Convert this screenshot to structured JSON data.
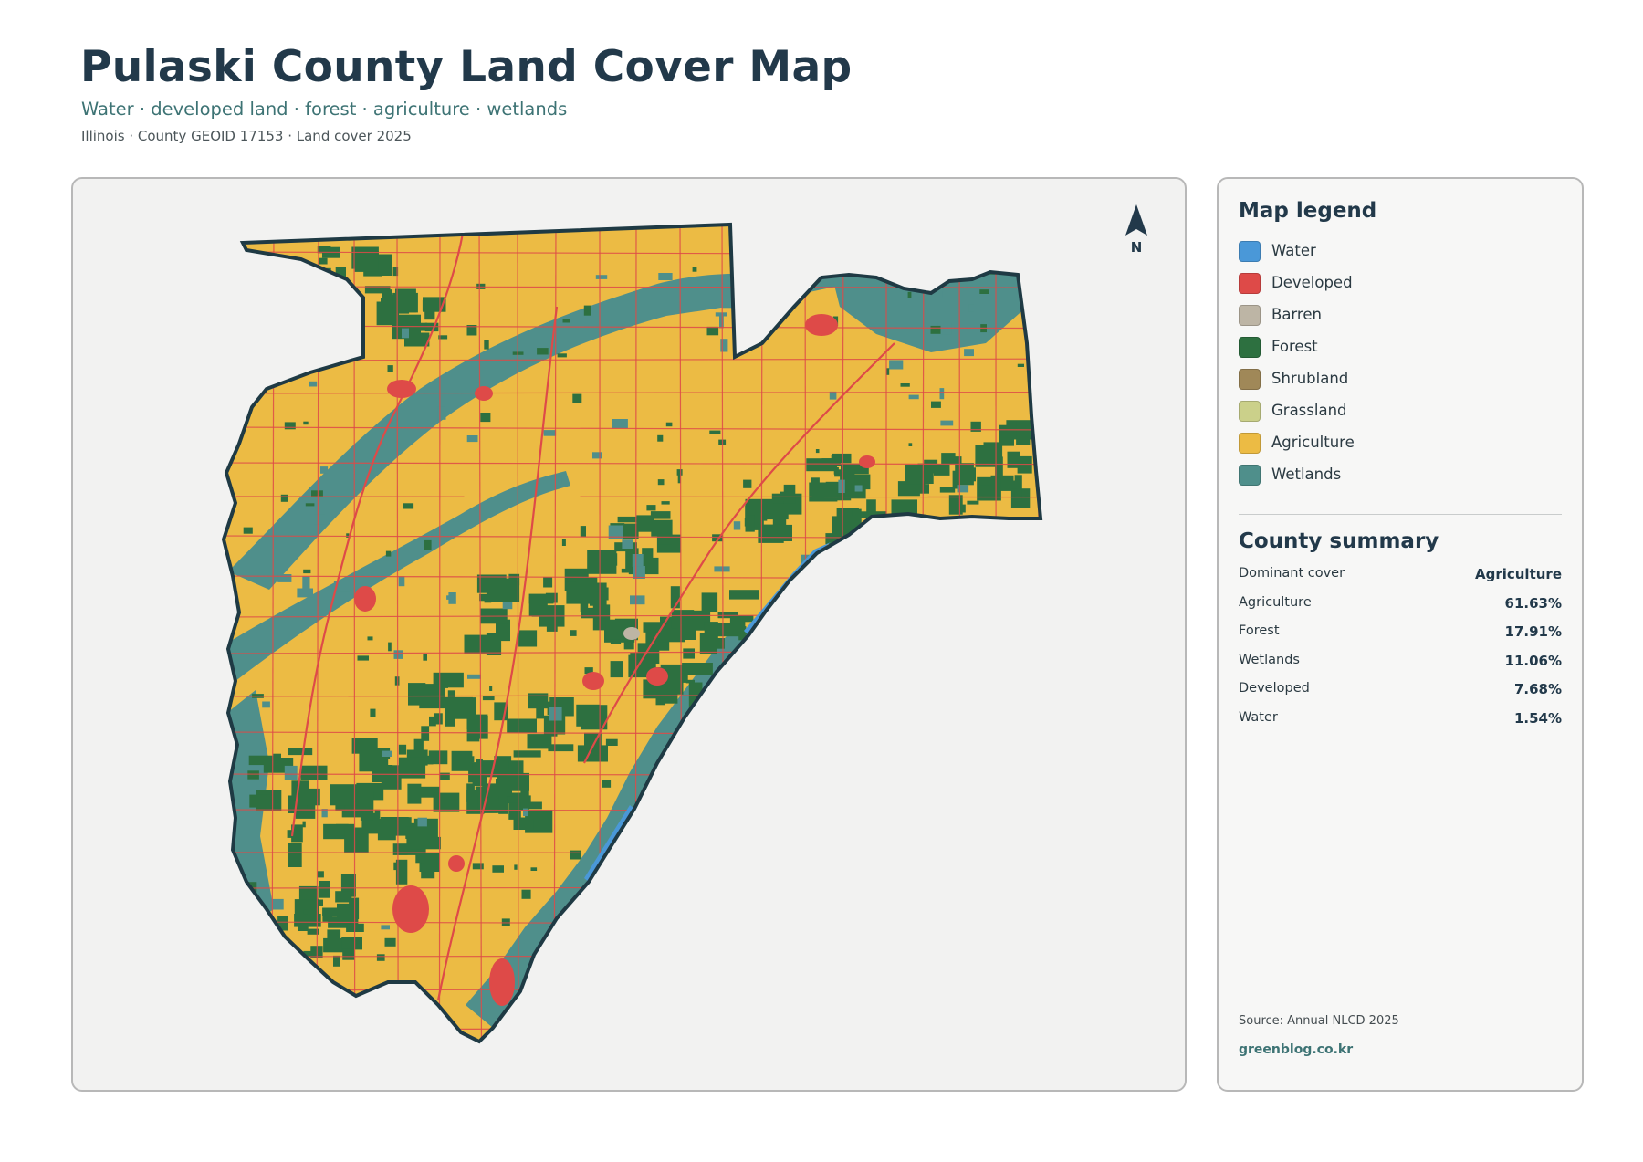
{
  "header": {
    "title": "Pulaski County Land Cover Map",
    "subtitle": "Water · developed land · forest · agriculture · wetlands",
    "meta": "Illinois · County GEOID 17153 · Land cover 2025"
  },
  "map": {
    "north_label": "N",
    "colors": {
      "water": "#4a98d8",
      "developed": "#de4a48",
      "barren": "#bdb5a5",
      "forest": "#2d7040",
      "shrubland": "#a08858",
      "grassland": "#cbd08a",
      "agriculture": "#ecbb44",
      "wetlands": "#4f8f8b",
      "boundary": "#1f3a44",
      "panel_bg": "#f2f2f1"
    }
  },
  "legend": {
    "title": "Map legend",
    "items": [
      {
        "label": "Water",
        "color": "#4a98d8"
      },
      {
        "label": "Developed",
        "color": "#de4a48"
      },
      {
        "label": "Barren",
        "color": "#bdb5a5"
      },
      {
        "label": "Forest",
        "color": "#2d7040"
      },
      {
        "label": "Shrubland",
        "color": "#a08858"
      },
      {
        "label": "Grassland",
        "color": "#cbd08a"
      },
      {
        "label": "Agriculture",
        "color": "#ecbb44"
      },
      {
        "label": "Wetlands",
        "color": "#4f8f8b"
      }
    ]
  },
  "summary": {
    "title": "County summary",
    "rows": [
      {
        "label": "Dominant cover",
        "value": "Agriculture"
      },
      {
        "label": "Agriculture",
        "value": "61.63%"
      },
      {
        "label": "Forest",
        "value": "17.91%"
      },
      {
        "label": "Wetlands",
        "value": "11.06%"
      },
      {
        "label": "Developed",
        "value": "7.68%"
      },
      {
        "label": "Water",
        "value": "1.54%"
      }
    ]
  },
  "footer": {
    "source": "Source: Annual NLCD 2025",
    "site": "greenblog.co.kr"
  }
}
